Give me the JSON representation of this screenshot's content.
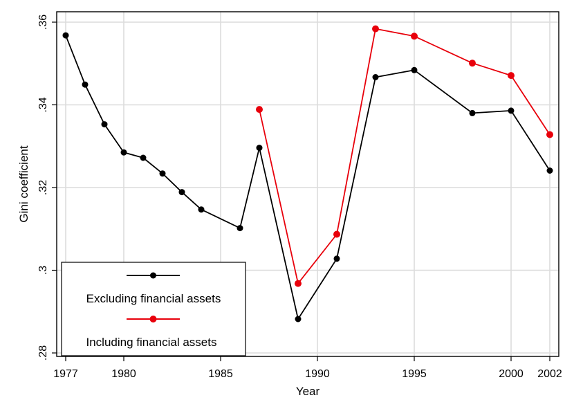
{
  "chart_data": {
    "type": "line",
    "title": "",
    "xlabel": "Year",
    "ylabel": "Gini coefficient",
    "xlim": [
      1977,
      2002
    ],
    "ylim": [
      0.28,
      0.36
    ],
    "grid": true,
    "x_ticks": [
      1977,
      1980,
      1985,
      1990,
      1995,
      2000,
      2002
    ],
    "y_ticks": [
      {
        "value": 0.28,
        "label": ".28"
      },
      {
        "value": 0.3,
        "label": ".3"
      },
      {
        "value": 0.32,
        "label": ".32"
      },
      {
        "value": 0.34,
        "label": ".34"
      },
      {
        "value": 0.36,
        "label": ".36"
      }
    ],
    "legend_position": "bottom-left",
    "series": [
      {
        "name": "Excluding financial assets",
        "color": "#000000",
        "points": [
          {
            "x": 1977,
            "y": 0.3568
          },
          {
            "x": 1978,
            "y": 0.3449
          },
          {
            "x": 1979,
            "y": 0.3353
          },
          {
            "x": 1980,
            "y": 0.3285
          },
          {
            "x": 1981,
            "y": 0.3272
          },
          {
            "x": 1982,
            "y": 0.3234
          },
          {
            "x": 1983,
            "y": 0.3189
          },
          {
            "x": 1984,
            "y": 0.3147
          },
          {
            "x": 1986,
            "y": 0.3102
          },
          {
            "x": 1987,
            "y": 0.3296
          },
          {
            "x": 1989,
            "y": 0.2882
          },
          {
            "x": 1991,
            "y": 0.3028
          },
          {
            "x": 1993,
            "y": 0.3467
          },
          {
            "x": 1995,
            "y": 0.3484
          },
          {
            "x": 1998,
            "y": 0.338
          },
          {
            "x": 2000,
            "y": 0.3386
          },
          {
            "x": 2002,
            "y": 0.3241
          }
        ]
      },
      {
        "name": "Including financial assets",
        "color": "#e8000b",
        "points": [
          {
            "x": 1987,
            "y": 0.3389
          },
          {
            "x": 1989,
            "y": 0.2968
          },
          {
            "x": 1991,
            "y": 0.3087
          },
          {
            "x": 1993,
            "y": 0.3584
          },
          {
            "x": 1995,
            "y": 0.3566
          },
          {
            "x": 1998,
            "y": 0.3501
          },
          {
            "x": 2000,
            "y": 0.3471
          },
          {
            "x": 2002,
            "y": 0.3328
          }
        ]
      }
    ]
  }
}
